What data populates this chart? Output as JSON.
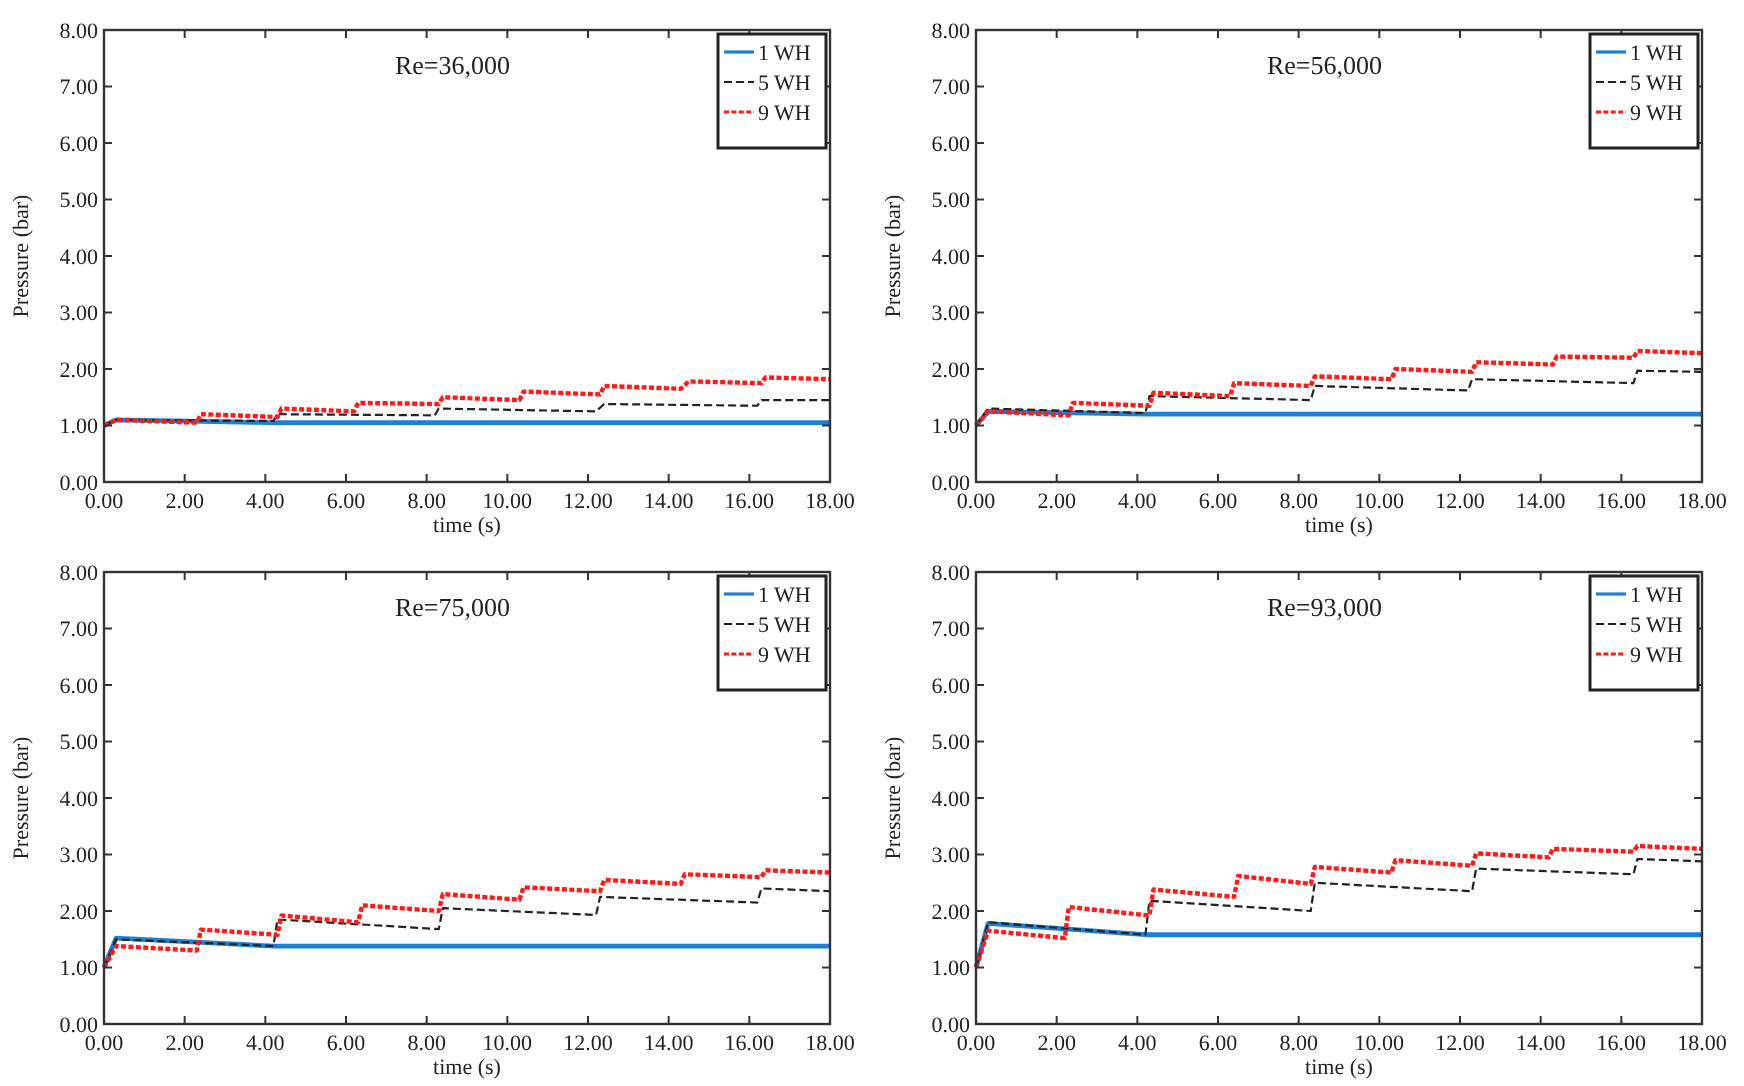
{
  "chart_data": [
    {
      "type": "line",
      "xlabel": "time (s)",
      "ylabel": "Pressure (bar)",
      "annotations": [
        "Re=36,000"
      ],
      "legend": "top right",
      "grid": false,
      "marker": "none",
      "xlim": [
        0,
        18
      ],
      "xticks": [
        {
          "value": 0,
          "label": "0.00"
        },
        {
          "value": 2,
          "label": "2.00"
        },
        {
          "value": 4,
          "label": "4.00"
        },
        {
          "value": 6,
          "label": "6.00"
        },
        {
          "value": 8,
          "label": "8.00"
        },
        {
          "value": 10,
          "label": "10.00"
        },
        {
          "value": 12,
          "label": "12.00"
        },
        {
          "value": 14,
          "label": "14.00"
        },
        {
          "value": 16,
          "label": "16.00"
        },
        {
          "value": 18,
          "label": "18.00"
        }
      ],
      "ylim": [
        0,
        8
      ],
      "yticks": [
        {
          "value": 0,
          "label": "0.00"
        },
        {
          "value": 1,
          "label": "1.00"
        },
        {
          "value": 2,
          "label": "2.00"
        },
        {
          "value": 3,
          "label": "3.00"
        },
        {
          "value": 4,
          "label": "4.00"
        },
        {
          "value": 5,
          "label": "5.00"
        },
        {
          "value": 6,
          "label": "6.00"
        },
        {
          "value": 7,
          "label": "7.00"
        },
        {
          "value": 8,
          "label": "8.00"
        }
      ],
      "series": [
        {
          "name": "1 WH",
          "color": "#1e7fd6",
          "line_style": "solid",
          "x": [
            0,
            0.3,
            4.2,
            18
          ],
          "values": [
            1.0,
            1.1,
            1.05,
            1.05
          ]
        },
        {
          "name": "5 WH",
          "color": "#222222",
          "line_style": "dashed",
          "x": [
            0,
            0.3,
            4.2,
            4.3,
            8.2,
            8.3,
            12.2,
            12.4,
            16.2,
            16.3,
            18
          ],
          "values": [
            1.0,
            1.1,
            1.08,
            1.2,
            1.18,
            1.3,
            1.25,
            1.38,
            1.35,
            1.45,
            1.45
          ]
        },
        {
          "name": "9 WH",
          "color": "#ff1a1a",
          "line_style": "dotted",
          "x": [
            0,
            0.3,
            2.3,
            2.4,
            4.3,
            4.4,
            6.2,
            6.3,
            8.3,
            8.4,
            10.3,
            10.4,
            12.3,
            12.4,
            14.3,
            14.5,
            16.3,
            16.4,
            18
          ],
          "values": [
            1.0,
            1.1,
            1.05,
            1.2,
            1.15,
            1.3,
            1.25,
            1.4,
            1.38,
            1.5,
            1.45,
            1.6,
            1.55,
            1.7,
            1.65,
            1.78,
            1.75,
            1.85,
            1.82
          ]
        }
      ]
    },
    {
      "type": "line",
      "xlabel": "time (s)",
      "ylabel": "Pressure (bar)",
      "annotations": [
        "Re=56,000"
      ],
      "legend": "top right",
      "grid": false,
      "marker": "none",
      "xlim": [
        0,
        18
      ],
      "xticks": [
        {
          "value": 0,
          "label": "0.00"
        },
        {
          "value": 2,
          "label": "2.00"
        },
        {
          "value": 4,
          "label": "4.00"
        },
        {
          "value": 6,
          "label": "6.00"
        },
        {
          "value": 8,
          "label": "8.00"
        },
        {
          "value": 10,
          "label": "10.00"
        },
        {
          "value": 12,
          "label": "12.00"
        },
        {
          "value": 14,
          "label": "14.00"
        },
        {
          "value": 16,
          "label": "16.00"
        },
        {
          "value": 18,
          "label": "18.00"
        }
      ],
      "ylim": [
        0,
        8
      ],
      "yticks": [
        {
          "value": 0,
          "label": "0.00"
        },
        {
          "value": 1,
          "label": "1.00"
        },
        {
          "value": 2,
          "label": "2.00"
        },
        {
          "value": 3,
          "label": "3.00"
        },
        {
          "value": 4,
          "label": "4.00"
        },
        {
          "value": 5,
          "label": "5.00"
        },
        {
          "value": 6,
          "label": "6.00"
        },
        {
          "value": 7,
          "label": "7.00"
        },
        {
          "value": 8,
          "label": "8.00"
        }
      ],
      "series": [
        {
          "name": "1 WH",
          "color": "#1e7fd6",
          "line_style": "solid",
          "x": [
            0,
            0.3,
            4.2,
            18
          ],
          "values": [
            1.0,
            1.25,
            1.2,
            1.2
          ]
        },
        {
          "name": "5 WH",
          "color": "#222222",
          "line_style": "dashed",
          "x": [
            0,
            0.3,
            4.2,
            4.3,
            8.3,
            8.4,
            12.2,
            12.3,
            16.3,
            16.4,
            18
          ],
          "values": [
            1.0,
            1.3,
            1.22,
            1.52,
            1.45,
            1.7,
            1.62,
            1.82,
            1.75,
            1.97,
            1.95
          ]
        },
        {
          "name": "9 WH",
          "color": "#ff1a1a",
          "line_style": "dotted",
          "x": [
            0,
            0.3,
            2.3,
            2.4,
            4.3,
            4.4,
            6.3,
            6.4,
            8.3,
            8.4,
            10.3,
            10.4,
            12.3,
            12.4,
            14.3,
            14.4,
            16.3,
            16.4,
            18
          ],
          "values": [
            1.0,
            1.25,
            1.18,
            1.4,
            1.35,
            1.58,
            1.52,
            1.75,
            1.7,
            1.87,
            1.82,
            2.0,
            1.95,
            2.12,
            2.08,
            2.22,
            2.2,
            2.32,
            2.28
          ]
        }
      ]
    },
    {
      "type": "line",
      "xlabel": "time (s)",
      "ylabel": "Pressure (bar)",
      "annotations": [
        "Re=75,000"
      ],
      "legend": "top right",
      "grid": false,
      "marker": "none",
      "xlim": [
        0,
        18
      ],
      "xticks": [
        {
          "value": 0,
          "label": "0.00"
        },
        {
          "value": 2,
          "label": "2.00"
        },
        {
          "value": 4,
          "label": "4.00"
        },
        {
          "value": 6,
          "label": "6.00"
        },
        {
          "value": 8,
          "label": "8.00"
        },
        {
          "value": 10,
          "label": "10.00"
        },
        {
          "value": 12,
          "label": "12.00"
        },
        {
          "value": 14,
          "label": "14.00"
        },
        {
          "value": 16,
          "label": "16.00"
        },
        {
          "value": 18,
          "label": "18.00"
        }
      ],
      "ylim": [
        0,
        8
      ],
      "yticks": [
        {
          "value": 0,
          "label": "0.00"
        },
        {
          "value": 1,
          "label": "1.00"
        },
        {
          "value": 2,
          "label": "2.00"
        },
        {
          "value": 3,
          "label": "3.00"
        },
        {
          "value": 4,
          "label": "4.00"
        },
        {
          "value": 5,
          "label": "5.00"
        },
        {
          "value": 6,
          "label": "6.00"
        },
        {
          "value": 7,
          "label": "7.00"
        },
        {
          "value": 8,
          "label": "8.00"
        }
      ],
      "series": [
        {
          "name": "1 WH",
          "color": "#1e7fd6",
          "line_style": "solid",
          "x": [
            0,
            0.3,
            4.2,
            18
          ],
          "values": [
            1.0,
            1.52,
            1.38,
            1.38
          ]
        },
        {
          "name": "5 WH",
          "color": "#222222",
          "line_style": "dashed",
          "x": [
            0,
            0.3,
            4.2,
            4.3,
            8.3,
            8.4,
            12.2,
            12.3,
            16.2,
            16.3,
            18
          ],
          "values": [
            1.0,
            1.5,
            1.38,
            1.85,
            1.68,
            2.05,
            1.93,
            2.25,
            2.15,
            2.4,
            2.35
          ]
        },
        {
          "name": "9 WH",
          "color": "#ff1a1a",
          "line_style": "dotted",
          "x": [
            0,
            0.3,
            2.3,
            2.4,
            4.3,
            4.4,
            6.3,
            6.4,
            8.3,
            8.4,
            10.3,
            10.4,
            12.3,
            12.4,
            14.3,
            14.4,
            16.3,
            16.4,
            18
          ],
          "values": [
            1.0,
            1.38,
            1.3,
            1.67,
            1.58,
            1.92,
            1.8,
            2.1,
            2.0,
            2.3,
            2.2,
            2.42,
            2.35,
            2.55,
            2.48,
            2.65,
            2.6,
            2.72,
            2.68
          ]
        }
      ]
    },
    {
      "type": "line",
      "xlabel": "time (s)",
      "ylabel": "Pressure (bar)",
      "annotations": [
        "Re=93,000"
      ],
      "legend": "top right",
      "grid": false,
      "marker": "none",
      "xlim": [
        0,
        18
      ],
      "xticks": [
        {
          "value": 0,
          "label": "0.00"
        },
        {
          "value": 2,
          "label": "2.00"
        },
        {
          "value": 4,
          "label": "4.00"
        },
        {
          "value": 6,
          "label": "6.00"
        },
        {
          "value": 8,
          "label": "8.00"
        },
        {
          "value": 10,
          "label": "10.00"
        },
        {
          "value": 12,
          "label": "12.00"
        },
        {
          "value": 14,
          "label": "14.00"
        },
        {
          "value": 16,
          "label": "16.00"
        },
        {
          "value": 18,
          "label": "18.00"
        }
      ],
      "ylim": [
        0,
        8
      ],
      "yticks": [
        {
          "value": 0,
          "label": "0.00"
        },
        {
          "value": 1,
          "label": "1.00"
        },
        {
          "value": 2,
          "label": "2.00"
        },
        {
          "value": 3,
          "label": "3.00"
        },
        {
          "value": 4,
          "label": "4.00"
        },
        {
          "value": 5,
          "label": "5.00"
        },
        {
          "value": 6,
          "label": "6.00"
        },
        {
          "value": 7,
          "label": "7.00"
        },
        {
          "value": 8,
          "label": "8.00"
        }
      ],
      "series": [
        {
          "name": "1 WH",
          "color": "#1e7fd6",
          "line_style": "solid",
          "x": [
            0,
            0.3,
            4.2,
            18
          ],
          "values": [
            1.0,
            1.78,
            1.58,
            1.58
          ]
        },
        {
          "name": "5 WH",
          "color": "#222222",
          "line_style": "dashed",
          "x": [
            0,
            0.3,
            4.2,
            4.3,
            8.3,
            8.4,
            12.3,
            12.4,
            16.3,
            16.4,
            18
          ],
          "values": [
            1.0,
            1.8,
            1.58,
            2.18,
            2.0,
            2.5,
            2.35,
            2.75,
            2.65,
            2.92,
            2.88
          ]
        },
        {
          "name": "9 WH",
          "color": "#ff1a1a",
          "line_style": "dotted",
          "x": [
            0,
            0.3,
            2.2,
            2.3,
            4.3,
            4.4,
            6.4,
            6.5,
            8.3,
            8.4,
            10.3,
            10.4,
            12.3,
            12.4,
            14.2,
            14.3,
            16.3,
            16.4,
            18
          ],
          "values": [
            1.0,
            1.65,
            1.52,
            2.07,
            1.92,
            2.38,
            2.25,
            2.62,
            2.48,
            2.78,
            2.68,
            2.9,
            2.8,
            3.02,
            2.95,
            3.1,
            3.05,
            3.15,
            3.1
          ]
        }
      ]
    }
  ]
}
